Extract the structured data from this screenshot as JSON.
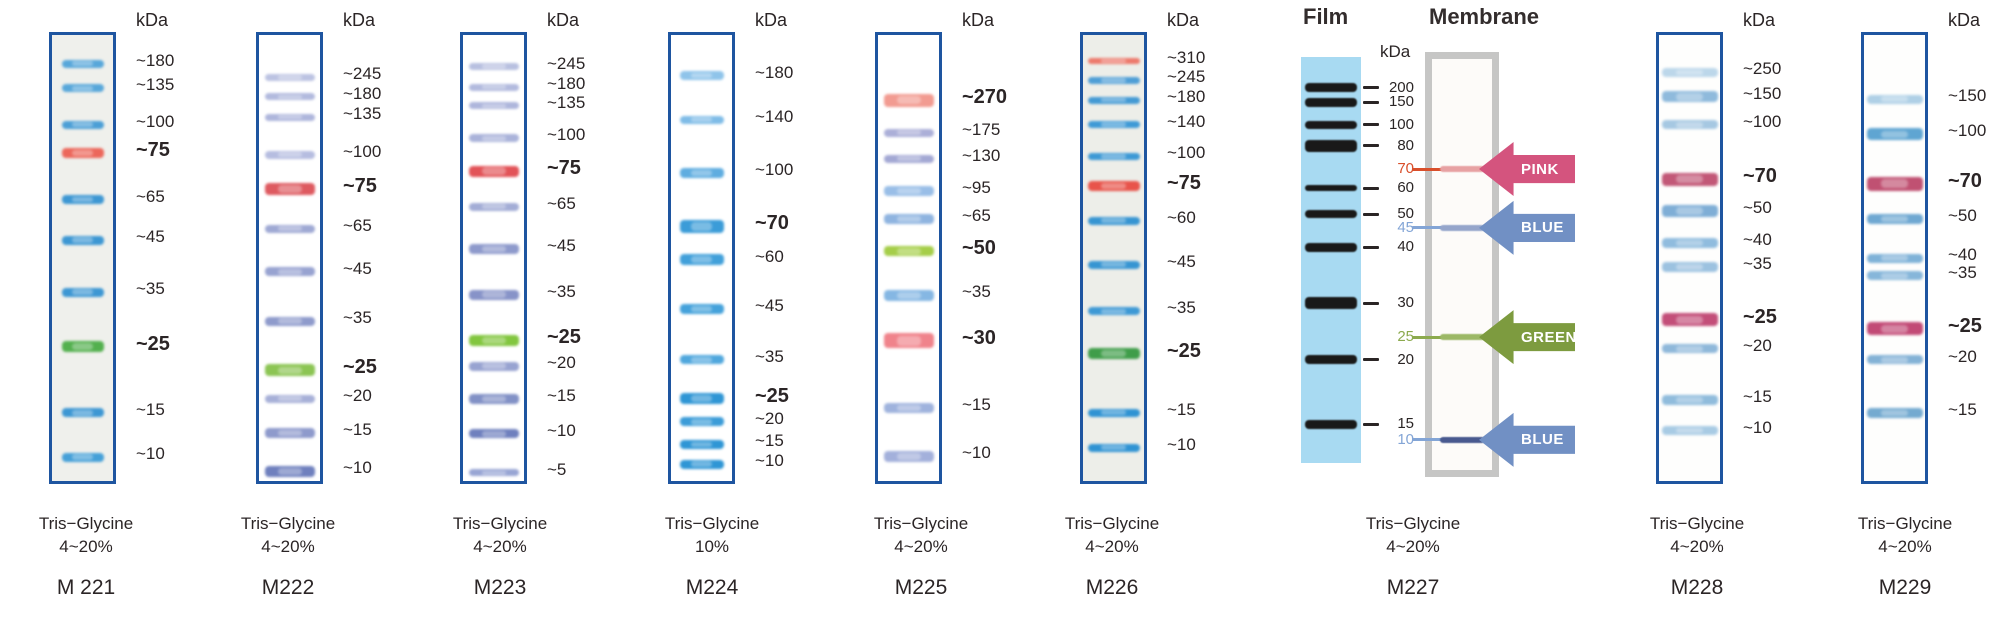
{
  "figure": {
    "background": "#FFFFFF",
    "frame_border_color": "#1E55A0"
  },
  "lanes": [
    {
      "id": "m221",
      "name": "M 221",
      "gel": "Tris−Glycine",
      "percent": "4~20%",
      "kda_unit": "kDa",
      "bg": "#EFF0EC",
      "band_width": 42,
      "bands": [
        {
          "kda": "~180",
          "y": 0.064,
          "color": "#58A7DA",
          "h": 8,
          "bold": false
        },
        {
          "kda": "~135",
          "y": 0.119,
          "color": "#58A7DA",
          "h": 8,
          "bold": false
        },
        {
          "kda": "~100",
          "y": 0.201,
          "color": "#4C9FD6",
          "h": 8,
          "bold": false
        },
        {
          "kda": "~75",
          "y": 0.265,
          "color": "#EC675B",
          "h": 10,
          "bold": true
        },
        {
          "kda": "~65",
          "y": 0.369,
          "color": "#3D97D3",
          "h": 9,
          "bold": false
        },
        {
          "kda": "~45",
          "y": 0.46,
          "color": "#3D97D3",
          "h": 9,
          "bold": false
        },
        {
          "kda": "~35",
          "y": 0.577,
          "color": "#3D97D3",
          "h": 9,
          "bold": false
        },
        {
          "kda": "~25",
          "y": 0.699,
          "color": "#53B04E",
          "h": 11,
          "bold": true
        },
        {
          "kda": "~15",
          "y": 0.847,
          "color": "#3D97D3",
          "h": 9,
          "bold": false
        },
        {
          "kda": "~10",
          "y": 0.947,
          "color": "#45A0D8",
          "h": 9,
          "bold": false
        }
      ]
    },
    {
      "id": "m222",
      "name": "M222",
      "gel": "Tris−Glycine",
      "percent": "4~20%",
      "kda_unit": "kDa",
      "bg": "#FFFFFF",
      "band_width": 50,
      "bands": [
        {
          "kda": "~245",
          "y": 0.095,
          "color": "#BCC3E2",
          "h": 7,
          "bold": false
        },
        {
          "kda": "~180",
          "y": 0.139,
          "color": "#B2BADE",
          "h": 7,
          "bold": false
        },
        {
          "kda": "~135",
          "y": 0.184,
          "color": "#AEB6DC",
          "h": 7,
          "bold": false
        },
        {
          "kda": "~100",
          "y": 0.268,
          "color": "#B6BDE0",
          "h": 8,
          "bold": false
        },
        {
          "kda": "~75",
          "y": 0.345,
          "color": "#DE5A60",
          "h": 12,
          "bold": true
        },
        {
          "kda": "~65",
          "y": 0.434,
          "color": "#9FA9D4",
          "h": 8,
          "bold": false
        },
        {
          "kda": "~45",
          "y": 0.531,
          "color": "#98A3D1",
          "h": 9,
          "bold": false
        },
        {
          "kda": "~35",
          "y": 0.642,
          "color": "#8F9BCC",
          "h": 9,
          "bold": false
        },
        {
          "kda": "~25",
          "y": 0.752,
          "color": "#8CC554",
          "h": 12,
          "bold": true
        },
        {
          "kda": "~20",
          "y": 0.816,
          "color": "#A7B0D8",
          "h": 8,
          "bold": false
        },
        {
          "kda": "~15",
          "y": 0.892,
          "color": "#8E9ACC",
          "h": 10,
          "bold": false
        },
        {
          "kda": "~10",
          "y": 0.978,
          "color": "#6F80BE",
          "h": 11,
          "bold": false
        }
      ]
    },
    {
      "id": "m223",
      "name": "M223",
      "gel": "Tris−Glycine",
      "percent": "4~20%",
      "kda_unit": "kDa",
      "bg": "#FFFFFF",
      "band_width": 50,
      "bands": [
        {
          "kda": "~245",
          "y": 0.071,
          "color": "#B8C0E0",
          "h": 7,
          "bold": false
        },
        {
          "kda": "~180",
          "y": 0.117,
          "color": "#B2BADE",
          "h": 7,
          "bold": false
        },
        {
          "kda": "~135",
          "y": 0.159,
          "color": "#AEB6DC",
          "h": 7,
          "bold": false
        },
        {
          "kda": "~100",
          "y": 0.232,
          "color": "#AAB3DA",
          "h": 8,
          "bold": false
        },
        {
          "kda": "~75",
          "y": 0.305,
          "color": "#E25358",
          "h": 11,
          "bold": true
        },
        {
          "kda": "~65",
          "y": 0.385,
          "color": "#A3ADD6",
          "h": 8,
          "bold": false
        },
        {
          "kda": "~45",
          "y": 0.48,
          "color": "#8E9ACC",
          "h": 10,
          "bold": false
        },
        {
          "kda": "~35",
          "y": 0.582,
          "color": "#8793C8",
          "h": 10,
          "bold": false
        },
        {
          "kda": "~25",
          "y": 0.684,
          "color": "#82C63F",
          "h": 11,
          "bold": true
        },
        {
          "kda": "~20",
          "y": 0.743,
          "color": "#98A3D1",
          "h": 9,
          "bold": false
        },
        {
          "kda": "~15",
          "y": 0.816,
          "color": "#8291C6",
          "h": 10,
          "bold": false
        },
        {
          "kda": "~10",
          "y": 0.894,
          "color": "#6F80BE",
          "h": 9,
          "bold": false
        },
        {
          "kda": "~5",
          "y": 0.982,
          "color": "#98A5D4",
          "h": 7,
          "bold": false
        }
      ]
    },
    {
      "id": "m224",
      "name": "M224",
      "gel": "Tris−Glycine",
      "percent": "10%",
      "kda_unit": "kDa",
      "bg": "#FFFFFF",
      "band_width": 44,
      "bands": [
        {
          "kda": "~180",
          "y": 0.091,
          "color": "#8FC4EA",
          "h": 9,
          "bold": false
        },
        {
          "kda": "~140",
          "y": 0.19,
          "color": "#7FBCE7",
          "h": 8,
          "bold": false
        },
        {
          "kda": "~100",
          "y": 0.31,
          "color": "#5FADE0",
          "h": 10,
          "bold": false
        },
        {
          "kda": "~70",
          "y": 0.429,
          "color": "#3B9CD8",
          "h": 13,
          "bold": true
        },
        {
          "kda": "~60",
          "y": 0.504,
          "color": "#41A0DA",
          "h": 11,
          "bold": false
        },
        {
          "kda": "~45",
          "y": 0.615,
          "color": "#45A2DB",
          "h": 10,
          "bold": false
        },
        {
          "kda": "~35",
          "y": 0.728,
          "color": "#50A7DD",
          "h": 9,
          "bold": false
        },
        {
          "kda": "~25",
          "y": 0.816,
          "color": "#2F96D5",
          "h": 11,
          "bold": true
        },
        {
          "kda": "~20",
          "y": 0.867,
          "color": "#3B9CD8",
          "h": 9,
          "bold": false
        },
        {
          "kda": "~15",
          "y": 0.918,
          "color": "#2F96D5",
          "h": 9,
          "bold": false
        },
        {
          "kda": "~10",
          "y": 0.962,
          "color": "#2F96D5",
          "h": 9,
          "bold": false
        }
      ]
    },
    {
      "id": "m225",
      "name": "M225",
      "gel": "Tris−Glycine",
      "percent": "4~20%",
      "kda_unit": "kDa",
      "bg": "#FFFFFF",
      "band_width": 50,
      "bands": [
        {
          "kda": "~270",
          "y": 0.146,
          "color": "#F29B91",
          "h": 13,
          "bold": true
        },
        {
          "kda": "~175",
          "y": 0.219,
          "color": "#ABAFD8",
          "h": 8,
          "bold": false
        },
        {
          "kda": "~130",
          "y": 0.277,
          "color": "#A3A8D4",
          "h": 8,
          "bold": false
        },
        {
          "kda": "~95",
          "y": 0.35,
          "color": "#99BEE7",
          "h": 10,
          "bold": false
        },
        {
          "kda": "~65",
          "y": 0.412,
          "color": "#8FB4E0",
          "h": 10,
          "bold": false
        },
        {
          "kda": "~50",
          "y": 0.485,
          "color": "#A5CE49",
          "h": 10,
          "bold": true
        },
        {
          "kda": "~35",
          "y": 0.584,
          "color": "#85B7E3",
          "h": 11,
          "bold": false
        },
        {
          "kda": "~30",
          "y": 0.686,
          "color": "#F0838B",
          "h": 15,
          "bold": true
        },
        {
          "kda": "~15",
          "y": 0.836,
          "color": "#9FB3DD",
          "h": 10,
          "bold": false
        },
        {
          "kda": "~10",
          "y": 0.945,
          "color": "#A3B0DB",
          "h": 11,
          "bold": false
        }
      ]
    },
    {
      "id": "m226",
      "name": "M226",
      "gel": "Tris−Glycine",
      "percent": "4~20%",
      "kda_unit": "kDa",
      "bg": "#EDEEE9",
      "band_width": 52,
      "bands": [
        {
          "kda": "~310",
          "y": 0.058,
          "color": "#ED7A6C",
          "h": 6,
          "bold": false
        },
        {
          "kda": "~245",
          "y": 0.102,
          "color": "#4E9ED6",
          "h": 7,
          "bold": false
        },
        {
          "kda": "~180",
          "y": 0.146,
          "color": "#449AD4",
          "h": 7,
          "bold": false
        },
        {
          "kda": "~140",
          "y": 0.201,
          "color": "#3F9AD6",
          "h": 7,
          "bold": false
        },
        {
          "kda": "~100",
          "y": 0.272,
          "color": "#3D99D5",
          "h": 7,
          "bold": false
        },
        {
          "kda": "~75",
          "y": 0.339,
          "color": "#E8544B",
          "h": 10,
          "bold": true
        },
        {
          "kda": "~60",
          "y": 0.416,
          "color": "#3795D2",
          "h": 8,
          "bold": false
        },
        {
          "kda": "~45",
          "y": 0.515,
          "color": "#3795D2",
          "h": 8,
          "bold": false
        },
        {
          "kda": "~35",
          "y": 0.619,
          "color": "#3E99D5",
          "h": 8,
          "bold": false
        },
        {
          "kda": "~25",
          "y": 0.715,
          "color": "#3F9D49",
          "h": 11,
          "bold": true
        },
        {
          "kda": "~15",
          "y": 0.847,
          "color": "#2F93D3",
          "h": 8,
          "bold": false
        },
        {
          "kda": "~10",
          "y": 0.925,
          "color": "#2F93D3",
          "h": 8,
          "bold": false
        }
      ]
    },
    {
      "id": "m228",
      "name": "M228",
      "gel": "Tris−Glycine",
      "percent": "4~20%",
      "kda_unit": "kDa",
      "bg": "#FEFEFD",
      "band_width": 56,
      "bands": [
        {
          "kda": "~250",
          "y": 0.084,
          "color": "#BCD7EA",
          "h": 9,
          "bold": false
        },
        {
          "kda": "~150",
          "y": 0.139,
          "color": "#8FBADC",
          "h": 11,
          "bold": false
        },
        {
          "kda": "~100",
          "y": 0.201,
          "color": "#A6C8E2",
          "h": 9,
          "bold": false
        },
        {
          "kda": "~70",
          "y": 0.323,
          "color": "#C25877",
          "h": 13,
          "bold": true
        },
        {
          "kda": "~50",
          "y": 0.394,
          "color": "#7FAED6",
          "h": 12,
          "bold": false
        },
        {
          "kda": "~40",
          "y": 0.467,
          "color": "#90BCDE",
          "h": 10,
          "bold": false
        },
        {
          "kda": "~35",
          "y": 0.52,
          "color": "#9CC2E0",
          "h": 10,
          "bold": false
        },
        {
          "kda": "~25",
          "y": 0.639,
          "color": "#C34E79",
          "h": 13,
          "bold": true
        },
        {
          "kda": "~20",
          "y": 0.704,
          "color": "#8FB8DA",
          "h": 9,
          "bold": false
        },
        {
          "kda": "~15",
          "y": 0.819,
          "color": "#90BCDC",
          "h": 10,
          "bold": false
        },
        {
          "kda": "~10",
          "y": 0.887,
          "color": "#A8CBE4",
          "h": 9,
          "bold": false
        }
      ]
    },
    {
      "id": "m229",
      "name": "M229",
      "gel": "Tris−Glycine",
      "percent": "4~20%",
      "kda_unit": "kDa",
      "bg": "#FEFEFD",
      "band_width": 56,
      "bands": [
        {
          "kda": "~150",
          "y": 0.144,
          "color": "#AFD0E6",
          "h": 9,
          "bold": false
        },
        {
          "kda": "~100",
          "y": 0.223,
          "color": "#5FA5D2",
          "h": 12,
          "bold": false
        },
        {
          "kda": "~70",
          "y": 0.334,
          "color": "#C05172",
          "h": 14,
          "bold": true
        },
        {
          "kda": "~50",
          "y": 0.412,
          "color": "#6FA8D2",
          "h": 10,
          "bold": false
        },
        {
          "kda": "~40",
          "y": 0.5,
          "color": "#7FB2D8",
          "h": 9,
          "bold": false
        },
        {
          "kda": "~35",
          "y": 0.54,
          "color": "#86B6DA",
          "h": 9,
          "bold": false
        },
        {
          "kda": "~25",
          "y": 0.659,
          "color": "#C24A76",
          "h": 13,
          "bold": true
        },
        {
          "kda": "~20",
          "y": 0.728,
          "color": "#84B2D6",
          "h": 9,
          "bold": false
        },
        {
          "kda": "~15",
          "y": 0.847,
          "color": "#74AAD0",
          "h": 10,
          "bold": false
        }
      ]
    }
  ],
  "panel_m227": {
    "film_title": "Film",
    "membrane_title": "Membrane",
    "kda_unit": "kDa",
    "name": "M227",
    "gel": "Tris−Glycine",
    "percent": "4~20%",
    "film_bg": "#A8DAF2",
    "film_band_color": "#191919",
    "tick_color": "#2A2525",
    "markers": [
      {
        "kda": "200",
        "y": 0.076,
        "film_band": true,
        "band_h": 9
      },
      {
        "kda": "150",
        "y": 0.111,
        "film_band": true,
        "band_h": 9
      },
      {
        "kda": "100",
        "y": 0.167,
        "film_band": true,
        "band_h": 8
      },
      {
        "kda": "80",
        "y": 0.219,
        "film_band": true,
        "band_h": 12
      },
      {
        "kda": "70",
        "y": 0.276,
        "film_band": false,
        "label_color": "#D94F2B",
        "membrane_band_color": "#E7A1A3",
        "arrow": {
          "label": "PINK",
          "color": "#D4547E"
        }
      },
      {
        "kda": "60",
        "y": 0.323,
        "film_band": true,
        "band_h": 6
      },
      {
        "kda": "50",
        "y": 0.387,
        "film_band": true,
        "band_h": 8
      },
      {
        "kda": "45",
        "y": 0.421,
        "film_band": false,
        "label_color": "#83A5D6",
        "membrane_band_color": "#95A5CB",
        "arrow": {
          "label": "BLUE",
          "color": "#7190C4"
        }
      },
      {
        "kda": "40",
        "y": 0.468,
        "film_band": true,
        "band_h": 9
      },
      {
        "kda": "30",
        "y": 0.606,
        "film_band": true,
        "band_h": 12
      },
      {
        "kda": "25",
        "y": 0.69,
        "film_band": false,
        "label_color": "#8CAA4E",
        "membrane_band_color": "#9CB866",
        "arrow": {
          "label": "GREEN",
          "color": "#7D9B3F"
        }
      },
      {
        "kda": "20",
        "y": 0.746,
        "film_band": true,
        "band_h": 9
      },
      {
        "kda": "15",
        "y": 0.904,
        "film_band": true,
        "band_h": 9
      },
      {
        "kda": "10",
        "y": 0.943,
        "film_band": false,
        "label_color": "#83A5D6",
        "membrane_band_color": "#49598F",
        "arrow": {
          "label": "BLUE",
          "color": "#7190C4"
        }
      }
    ]
  }
}
